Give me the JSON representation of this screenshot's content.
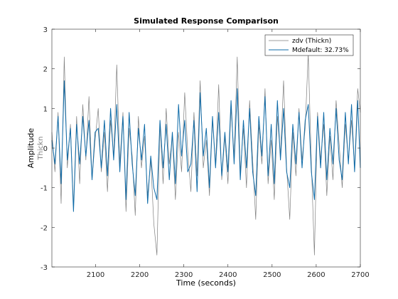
{
  "chart_data": {
    "type": "line",
    "title": "Simulated Response Comparison",
    "xlabel": "Time (seconds)",
    "ylabel": "Amplitude",
    "ysublabel": "Thickn",
    "xlim": [
      2001,
      2700
    ],
    "ylim": [
      -3,
      3
    ],
    "xticks": [
      2100,
      2200,
      2300,
      2400,
      2500,
      2600,
      2700
    ],
    "yticks": [
      -3,
      -2,
      -1,
      0,
      1,
      2,
      3
    ],
    "grid": false,
    "legend_position": "top-right",
    "x": [
      2001,
      2008,
      2015,
      2022,
      2029,
      2036,
      2043,
      2050,
      2057,
      2064,
      2071,
      2078,
      2085,
      2092,
      2099,
      2106,
      2113,
      2120,
      2127,
      2134,
      2141,
      2148,
      2155,
      2162,
      2169,
      2176,
      2183,
      2190,
      2197,
      2204,
      2211,
      2218,
      2225,
      2232,
      2239,
      2246,
      2253,
      2260,
      2267,
      2274,
      2281,
      2288,
      2295,
      2302,
      2309,
      2316,
      2323,
      2330,
      2337,
      2344,
      2351,
      2358,
      2365,
      2372,
      2379,
      2386,
      2393,
      2400,
      2407,
      2414,
      2421,
      2428,
      2435,
      2442,
      2449,
      2456,
      2463,
      2470,
      2477,
      2484,
      2491,
      2498,
      2505,
      2512,
      2519,
      2526,
      2533,
      2540,
      2547,
      2554,
      2561,
      2568,
      2575,
      2582,
      2589,
      2596,
      2603,
      2610,
      2617,
      2624,
      2631,
      2638,
      2645,
      2652,
      2659,
      2666,
      2673,
      2680,
      2687,
      2694,
      2700
    ],
    "series": [
      {
        "name": "zdv (Thickn)",
        "color": "#7f7f7f",
        "values": [
          0.4,
          -0.6,
          0.9,
          -1.4,
          2.3,
          -0.5,
          0.6,
          -1.5,
          0.8,
          -0.9,
          1.1,
          -0.3,
          1.3,
          -0.8,
          0.2,
          1.0,
          -0.6,
          0.4,
          -1.1,
          0.7,
          -0.2,
          2.1,
          -0.4,
          0.9,
          -1.6,
          0.5,
          -0.2,
          -1.7,
          0.8,
          -0.5,
          0.3,
          -1.2,
          -0.3,
          -1.9,
          -2.7,
          0.6,
          -0.9,
          1.0,
          -0.4,
          0.3,
          -1.3,
          0.4,
          -0.6,
          1.4,
          -0.1,
          -1.1,
          0.9,
          -0.7,
          1.7,
          -0.5,
          0.2,
          -1.2,
          0.7,
          -0.4,
          1.6,
          -0.8,
          0.3,
          -0.9,
          1.0,
          -0.2,
          2.3,
          -0.6,
          0.5,
          -1.0,
          1.2,
          -0.3,
          -1.8,
          0.6,
          -0.4,
          1.5,
          -0.9,
          0.2,
          -1.3,
          0.8,
          -0.2,
          1.7,
          -0.5,
          -1.8,
          0.4,
          -0.7,
          1.0,
          -0.3,
          0.5,
          2.4,
          -0.4,
          -2.7,
          0.9,
          -0.3,
          0.6,
          -1.2,
          0.3,
          -0.8,
          1.2,
          0.1,
          -1.0,
          0.6,
          -0.3,
          0.7,
          -0.5,
          1.5,
          0.9
        ]
      },
      {
        "name": "Mdefault: 32.73%",
        "color": "#0f6ba8",
        "values": [
          0.2,
          -0.4,
          0.8,
          -0.9,
          1.7,
          -0.3,
          0.5,
          -1.6,
          0.6,
          -0.4,
          0.8,
          -0.2,
          0.7,
          -0.8,
          0.4,
          0.5,
          -0.5,
          0.7,
          -0.7,
          1.0,
          -0.3,
          1.1,
          -0.6,
          0.8,
          -1.3,
          0.9,
          -0.4,
          -1.2,
          0.5,
          -0.3,
          0.6,
          -1.4,
          -0.2,
          -1.0,
          -1.3,
          0.7,
          -0.5,
          0.6,
          -0.8,
          0.4,
          -0.9,
          1.1,
          -0.2,
          0.7,
          -0.6,
          -0.4,
          0.7,
          -1.1,
          1.4,
          -0.2,
          0.5,
          -1.0,
          0.8,
          -0.5,
          0.9,
          -0.7,
          0.4,
          -0.6,
          1.2,
          -0.4,
          1.5,
          -0.8,
          0.7,
          -0.5,
          1.0,
          -0.6,
          -1.2,
          0.8,
          -0.2,
          1.3,
          -0.7,
          0.6,
          -0.9,
          1.2,
          -0.3,
          1.0,
          -0.6,
          -1.0,
          0.6,
          -0.4,
          0.9,
          -0.5,
          0.7,
          1.1,
          -0.6,
          -1.3,
          0.8,
          -0.5,
          0.9,
          -0.8,
          0.5,
          -0.4,
          1.0,
          -0.3,
          -0.8,
          0.9,
          -0.4,
          1.1,
          -0.6,
          1.2,
          -0.5
        ]
      }
    ]
  }
}
